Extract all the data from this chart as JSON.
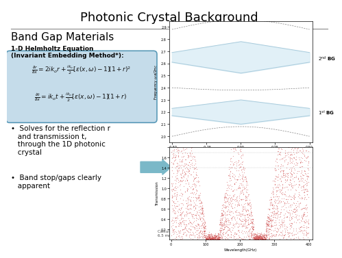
{
  "title": "Photonic Crystal Background",
  "subtitle": "Band Gap Materials",
  "bg_color": "#ffffff",
  "title_color": "#000000",
  "equation_box_color": "#c5dcea",
  "equation_box_edge": "#5a9ab8",
  "heading1": "1-D Helmholtz Equation\n(Invariant Embedding Method*):",
  "bullet1": "Solves for the reflection r\nand transmission t,\nthrough the 1D photonic\ncrystal",
  "bullet2": "Band stop/gaps clearly\napparent",
  "caption": "Calculations for N = 10, a = 9 mm, dₐ =\n6.5 mm, dₙ = 2.5 mm, Nₐ = 4, Nₙ = 1",
  "label_2nd_BG": "2nd BG",
  "label_1st_BG": "1st BG",
  "arrow_color": "#7ab8c8",
  "band_fill_color": "#daedf5",
  "band_edge_color": "#aaccdd",
  "scatter_color": "#cc4444"
}
